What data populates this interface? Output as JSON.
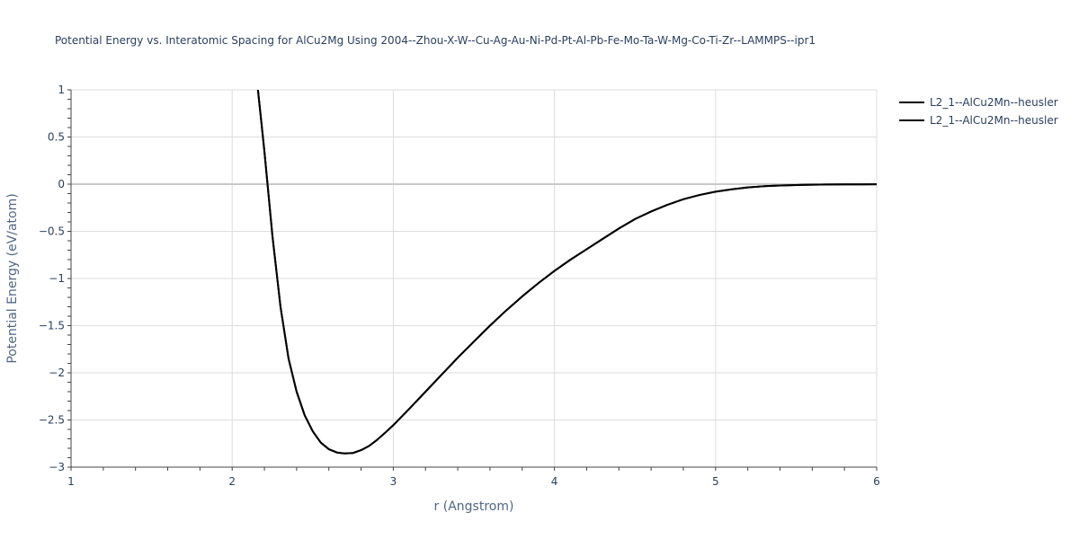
{
  "chart_title": "Potential Energy vs. Interatomic Spacing for AlCu2Mg Using 2004--Zhou-X-W--Cu-Ag-Au-Ni-Pd-Pt-Al-Pb-Fe-Mo-Ta-W-Mg-Co-Ti-Zr--LAMMPS--ipr1",
  "chart_data": {
    "type": "line",
    "title": "Potential Energy vs. Interatomic Spacing for AlCu2Mg Using 2004--Zhou-X-W--Cu-Ag-Au-Ni-Pd-Pt-Al-Pb-Fe-Mo-Ta-W-Mg-Co-Ti-Zr--LAMMPS--ipr1",
    "xlabel": "r (Angstrom)",
    "ylabel": "Potential Energy (eV/atom)",
    "xlim": [
      1,
      6
    ],
    "ylim": [
      -3,
      1
    ],
    "x_ticks": [
      "1",
      "2",
      "3",
      "4",
      "5",
      "6"
    ],
    "y_ticks": [
      "1",
      "0.5",
      "0",
      "−0.5",
      "−1",
      "−1.5",
      "−2",
      "−2.5",
      "−3"
    ],
    "grid": true,
    "legend_position": "top-right",
    "series": [
      {
        "name": "L2_1--AlCu2Mn--heusler",
        "color": "#000000",
        "x": [
          2.16,
          2.2,
          2.25,
          2.3,
          2.35,
          2.4,
          2.45,
          2.5,
          2.55,
          2.6,
          2.65,
          2.7,
          2.75,
          2.8,
          2.85,
          2.9,
          2.95,
          3.0,
          3.1,
          3.2,
          3.3,
          3.4,
          3.5,
          3.6,
          3.7,
          3.8,
          3.9,
          4.0,
          4.1,
          4.2,
          4.3,
          4.4,
          4.5,
          4.6,
          4.7,
          4.8,
          4.9,
          5.0,
          5.1,
          5.2,
          5.3,
          5.4,
          5.5,
          5.6,
          5.7,
          5.8,
          5.9,
          6.0
        ],
        "y": [
          1.0,
          0.35,
          -0.55,
          -1.3,
          -1.85,
          -2.2,
          -2.45,
          -2.62,
          -2.74,
          -2.81,
          -2.845,
          -2.855,
          -2.85,
          -2.82,
          -2.775,
          -2.71,
          -2.635,
          -2.555,
          -2.38,
          -2.2,
          -2.02,
          -1.84,
          -1.67,
          -1.5,
          -1.34,
          -1.19,
          -1.05,
          -0.92,
          -0.8,
          -0.69,
          -0.58,
          -0.47,
          -0.37,
          -0.29,
          -0.22,
          -0.16,
          -0.115,
          -0.08,
          -0.055,
          -0.035,
          -0.022,
          -0.014,
          -0.009,
          -0.006,
          -0.004,
          -0.003,
          -0.002,
          -0.001
        ]
      },
      {
        "name": "L2_1--AlCu2Mn--heusler",
        "color": "#000000",
        "x": [
          2.16,
          2.2,
          2.25,
          2.3,
          2.35,
          2.4,
          2.45,
          2.5,
          2.55,
          2.6,
          2.65,
          2.7,
          2.75,
          2.8,
          2.85,
          2.9,
          2.95,
          3.0,
          3.1,
          3.2,
          3.3,
          3.4,
          3.5,
          3.6,
          3.7,
          3.8,
          3.9,
          4.0,
          4.1,
          4.2,
          4.3,
          4.4,
          4.5,
          4.6,
          4.7,
          4.8,
          4.9,
          5.0,
          5.1,
          5.2,
          5.3,
          5.4,
          5.5,
          5.6,
          5.7,
          5.8,
          5.9,
          6.0
        ],
        "y": [
          1.0,
          0.35,
          -0.55,
          -1.3,
          -1.85,
          -2.2,
          -2.45,
          -2.62,
          -2.74,
          -2.81,
          -2.845,
          -2.855,
          -2.85,
          -2.82,
          -2.775,
          -2.71,
          -2.635,
          -2.555,
          -2.38,
          -2.2,
          -2.02,
          -1.84,
          -1.67,
          -1.5,
          -1.34,
          -1.19,
          -1.05,
          -0.92,
          -0.8,
          -0.69,
          -0.58,
          -0.47,
          -0.37,
          -0.29,
          -0.22,
          -0.16,
          -0.115,
          -0.08,
          -0.055,
          -0.035,
          -0.022,
          -0.014,
          -0.009,
          -0.006,
          -0.004,
          -0.003,
          -0.002,
          -0.001
        ]
      }
    ]
  }
}
